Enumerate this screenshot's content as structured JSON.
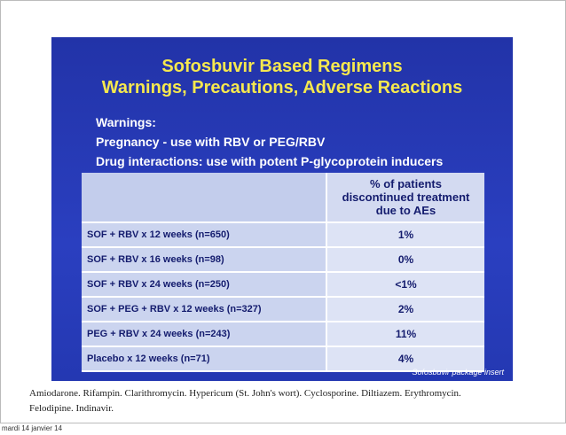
{
  "slide": {
    "title": [
      "Sofosbuvir Based Regimens",
      "Warnings, Precautions, Adverse Reactions"
    ],
    "warnings": [
      "Warnings:",
      "Pregnancy - use with RBV or PEG/RBV",
      "Drug interactions: use with potent P-glycoprotein inducers"
    ],
    "table": {
      "header": [
        "% of patients",
        "discontinued treatment",
        "due to AEs"
      ],
      "rows": [
        [
          "SOF + RBV x 12 weeks (n=650)",
          "1%"
        ],
        [
          "SOF + RBV x 16 weeks (n=98)",
          "0%"
        ],
        [
          "SOF + RBV x 24 weeks (n=250)",
          "<1%"
        ],
        [
          "SOF + PEG + RBV x 12 weeks (n=327)",
          "2%"
        ],
        [
          "PEG + RBV x 24 weeks  (n=243)",
          "11%"
        ],
        [
          "Placebo x 12 weeks (n=71)",
          "4%"
        ]
      ]
    },
    "source": "Sofosbuvir package insert"
  },
  "notes": [
    "Amiodarone. Rifampin. Clarithromycin. Hypericum (St. John's wort). Cyclosporine. Diltiazem. Erythromycin.",
    "Felodipine. Indinavir."
  ],
  "footer_date": "mardi 14 janvier 14"
}
